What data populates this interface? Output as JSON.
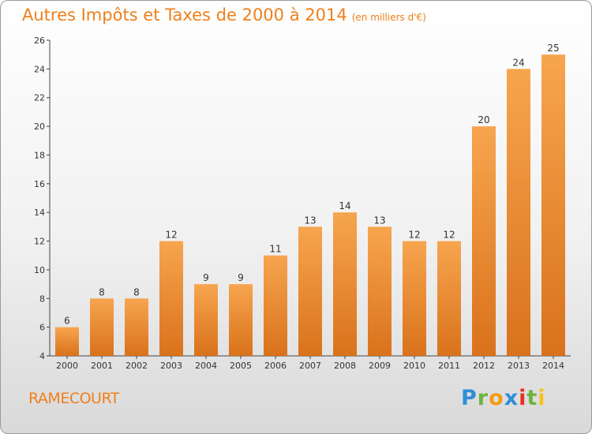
{
  "header": {
    "title": "Autres Impôts et Taxes de 2000 à 2014",
    "subtitle": "(en milliers d'€)"
  },
  "footer": {
    "town": "RAMECOURT",
    "brand": [
      "P",
      "r",
      "o",
      "x",
      "i",
      "t",
      "i"
    ]
  },
  "colors": {
    "accent": "#ef7f1a",
    "bar_light": "#f7a54f",
    "bar_dark": "#d9721b"
  },
  "chart_data": {
    "type": "bar",
    "categories": [
      "2000",
      "2001",
      "2002",
      "2003",
      "2004",
      "2005",
      "2006",
      "2007",
      "2008",
      "2009",
      "2010",
      "2011",
      "2012",
      "2013",
      "2014"
    ],
    "values": [
      6,
      8,
      8,
      12,
      9,
      9,
      11,
      13,
      14,
      13,
      12,
      12,
      20,
      24,
      25
    ],
    "title": "Autres Impôts et Taxes de 2000 à 2014",
    "subtitle": "(en milliers d'€)",
    "xlabel": "",
    "ylabel": "",
    "ylim": [
      4,
      26
    ],
    "yticks": [
      4,
      6,
      8,
      10,
      12,
      14,
      16,
      18,
      20,
      22,
      24,
      26
    ],
    "grid": false,
    "data_labels": true
  }
}
